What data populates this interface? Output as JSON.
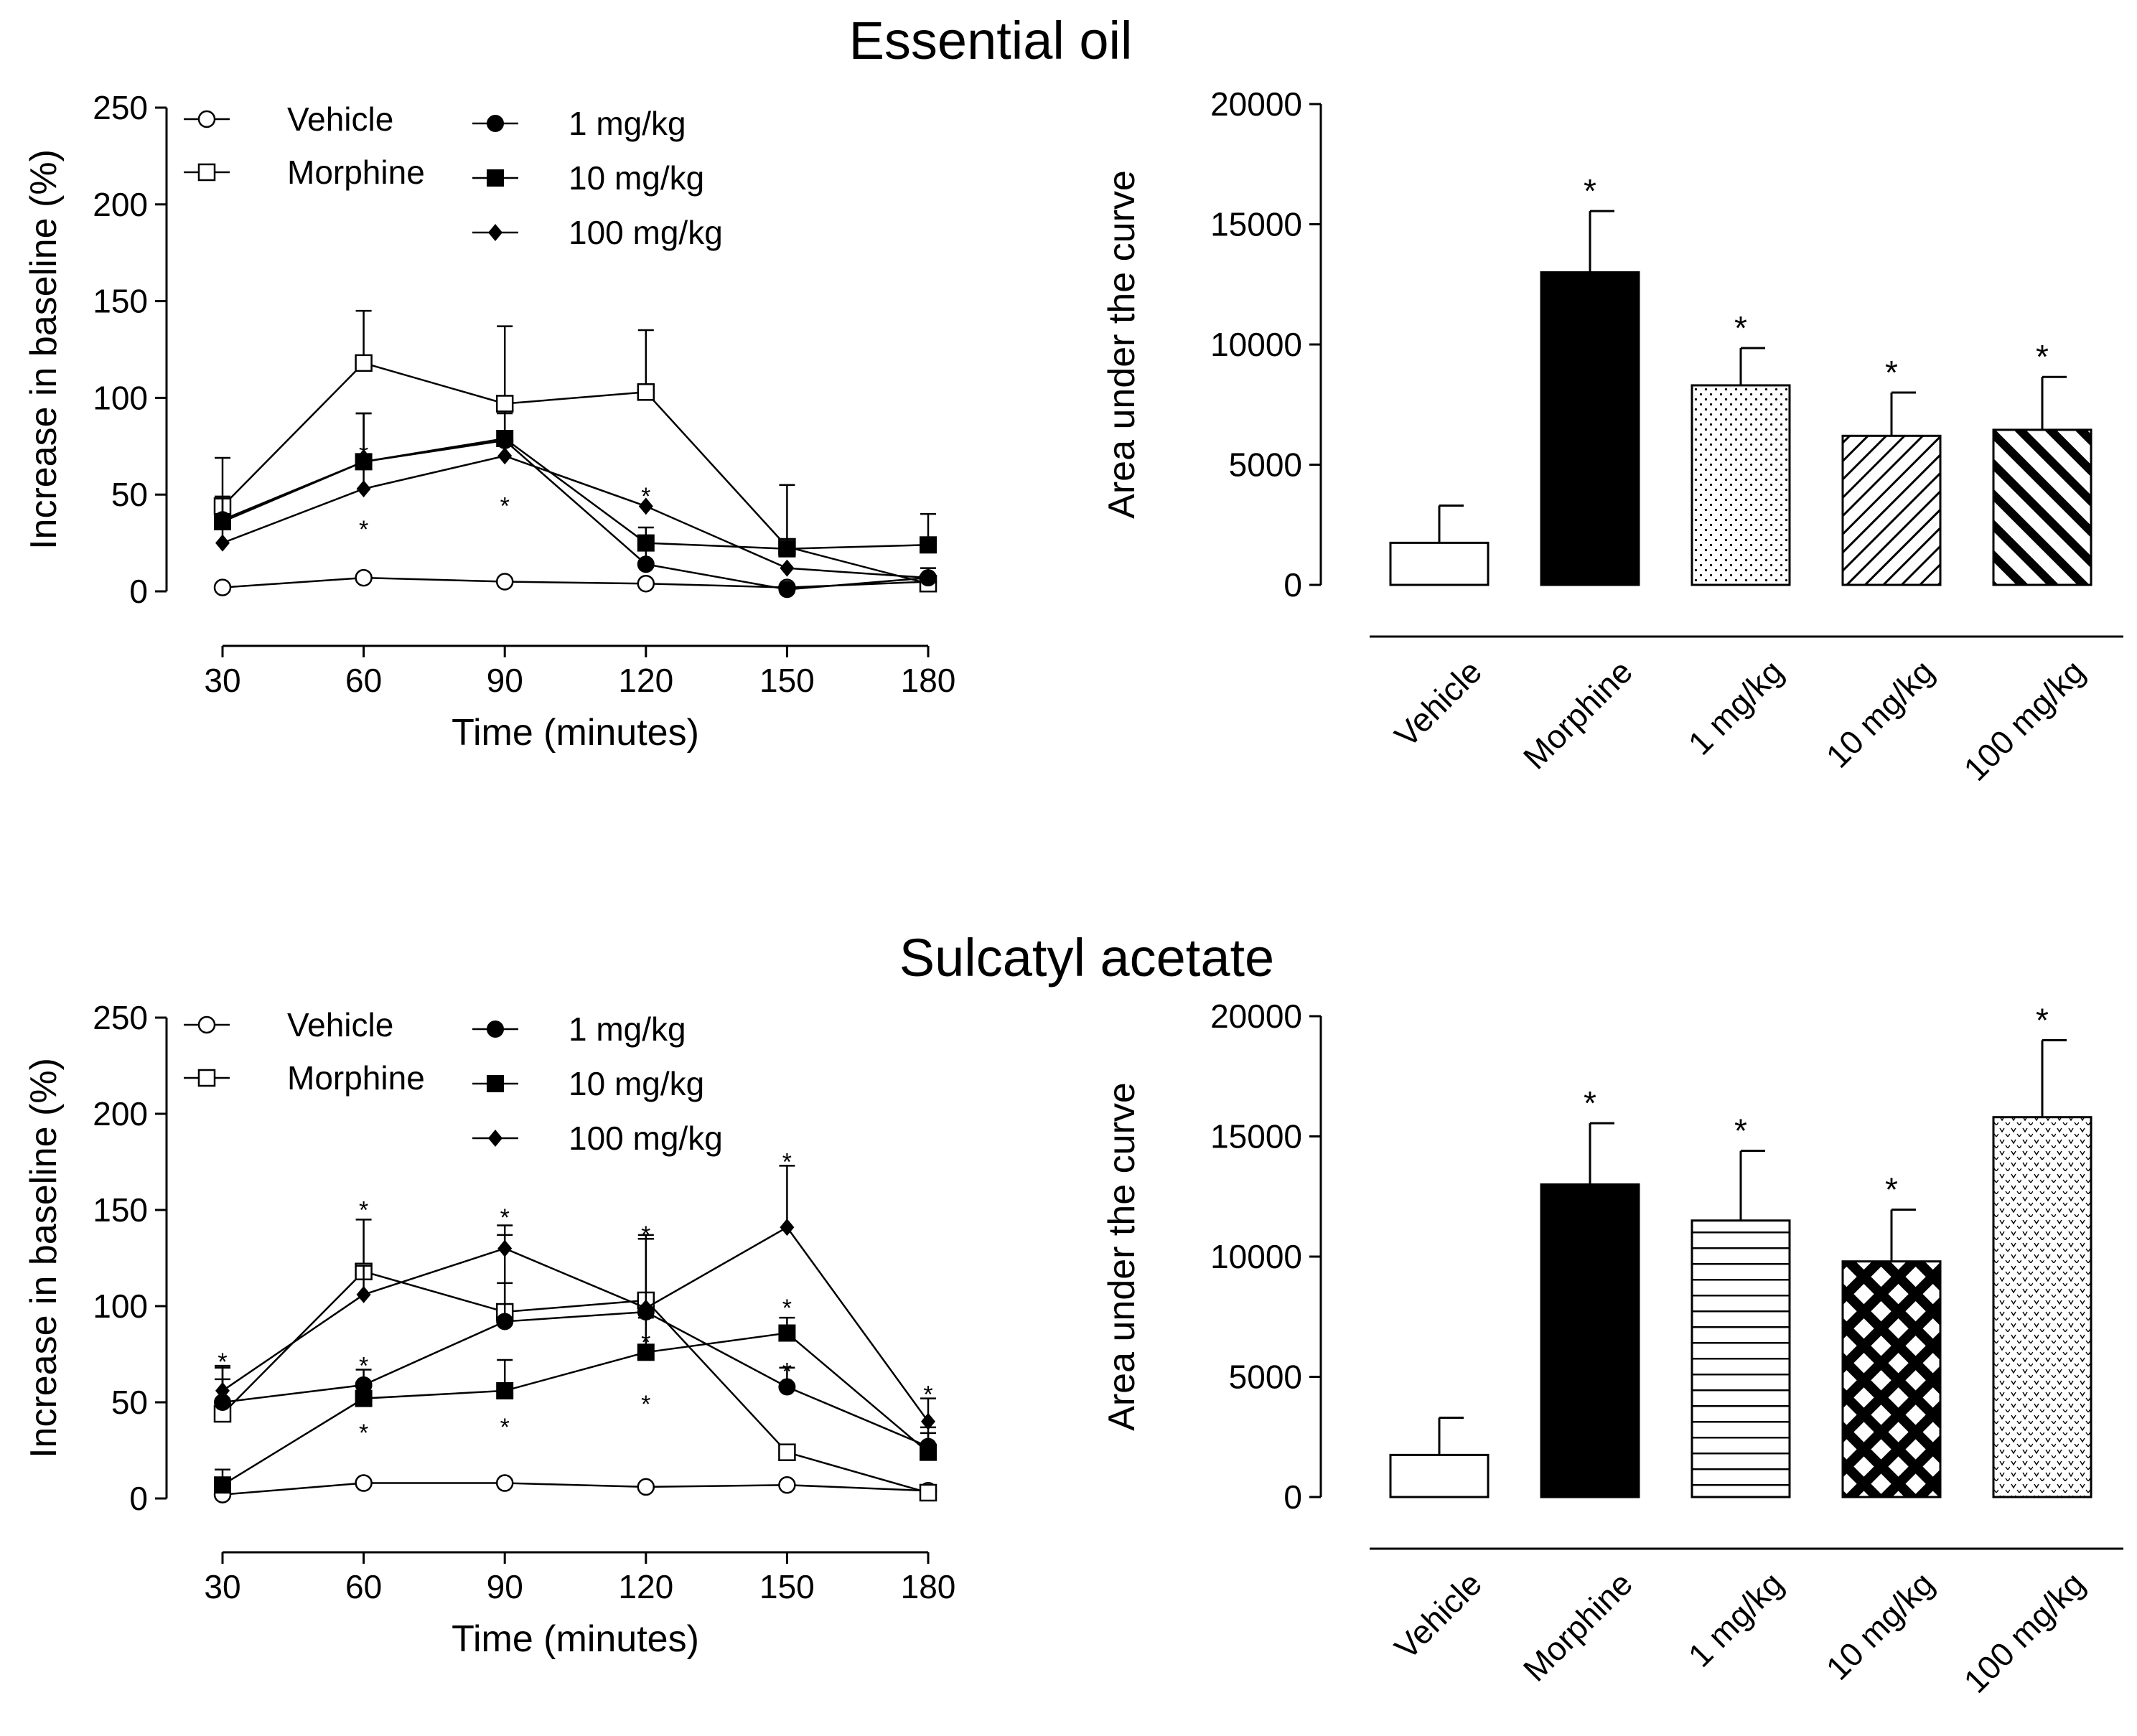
{
  "figure": {
    "panels": [
      "top",
      "bottom"
    ]
  },
  "chart_data": [
    {
      "id": "eo-line",
      "type": "line",
      "panel_title": "Essential oil",
      "xlabel": "Time (minutes)",
      "ylabel": "Increase in baseline (%)",
      "x": [
        30,
        60,
        90,
        120,
        150,
        180
      ],
      "xlim": [
        30,
        180
      ],
      "ylim": [
        0,
        250
      ],
      "yticks": [
        0,
        50,
        100,
        150,
        200,
        250
      ],
      "legend": [
        "Vehicle",
        "Morphine",
        "1 mg/kg",
        "10 mg/kg",
        "100 mg/kg"
      ],
      "series": [
        {
          "name": "Vehicle",
          "marker": "circle-open",
          "values": [
            2,
            7,
            5,
            4,
            2,
            5
          ],
          "err": [
            0,
            0,
            0,
            0,
            0,
            0
          ]
        },
        {
          "name": "Morphine",
          "marker": "square-open",
          "values": [
            44,
            118,
            97,
            103,
            23,
            4
          ],
          "err": [
            25,
            27,
            40,
            32,
            32,
            0
          ]
        },
        {
          "name": "1 mg/kg",
          "marker": "circle-filled",
          "values": [
            37,
            67,
            78,
            14,
            1,
            7
          ],
          "err": [
            12,
            25,
            14,
            8,
            0,
            0
          ]
        },
        {
          "name": "10 mg/kg",
          "marker": "square-filled",
          "values": [
            36,
            67,
            79,
            25,
            22,
            24
          ],
          "err": [
            12,
            25,
            14,
            8,
            5,
            16
          ]
        },
        {
          "name": "100 mg/kg",
          "marker": "diamond-filled",
          "values": [
            25,
            53,
            70,
            44,
            12,
            7
          ],
          "err": [
            8,
            12,
            12,
            0,
            0,
            5
          ]
        }
      ],
      "annotations": [
        {
          "text": "*",
          "x": 60,
          "y": 72
        },
        {
          "text": "*",
          "x": 60,
          "y": 33
        },
        {
          "text": "*",
          "x": 90,
          "y": 77
        },
        {
          "text": "*",
          "x": 90,
          "y": 45
        },
        {
          "text": "*",
          "x": 120,
          "y": 50
        }
      ]
    },
    {
      "id": "eo-bar",
      "type": "bar",
      "ylabel": "Area under the curve",
      "categories": [
        "Vehicle",
        "Morphine",
        "1 mg/kg",
        "10 mg/kg",
        "100 mg/kg"
      ],
      "values": [
        1750,
        13000,
        8300,
        6200,
        6450
      ],
      "err": [
        1550,
        2550,
        1550,
        1800,
        2200
      ],
      "sig": [
        "",
        "*",
        "*",
        "*",
        "*"
      ],
      "patterns": [
        "none",
        "solid",
        "dots",
        "diag-thin",
        "diag-thick"
      ],
      "ylim": [
        0,
        20000
      ],
      "yticks": [
        0,
        5000,
        10000,
        15000,
        20000
      ]
    },
    {
      "id": "sa-line",
      "type": "line",
      "panel_title": "Sulcatyl acetate",
      "xlabel": "Time (minutes)",
      "ylabel": "Increase in baseline (%)",
      "x": [
        30,
        60,
        90,
        120,
        150,
        180
      ],
      "xlim": [
        30,
        180
      ],
      "ylim": [
        0,
        250
      ],
      "yticks": [
        0,
        50,
        100,
        150,
        200,
        250
      ],
      "legend": [
        "Vehicle",
        "Morphine",
        "1 mg/kg",
        "10 mg/kg",
        "100 mg/kg"
      ],
      "series": [
        {
          "name": "Vehicle",
          "marker": "circle-open",
          "values": [
            2,
            8,
            8,
            6,
            7,
            4
          ],
          "err": [
            0,
            0,
            0,
            0,
            0,
            0
          ]
        },
        {
          "name": "Morphine",
          "marker": "square-open",
          "values": [
            44,
            118,
            97,
            103,
            24,
            3
          ],
          "err": [
            25,
            27,
            40,
            32,
            0,
            0
          ]
        },
        {
          "name": "1 mg/kg",
          "marker": "circle-filled",
          "values": [
            50,
            59,
            92,
            97,
            58,
            27
          ],
          "err": [
            12,
            8,
            20,
            38,
            10,
            10
          ]
        },
        {
          "name": "10 mg/kg",
          "marker": "square-filled",
          "values": [
            7,
            52,
            56,
            76,
            86,
            24
          ],
          "err": [
            8,
            6,
            16,
            18,
            8,
            10
          ]
        },
        {
          "name": "100 mg/kg",
          "marker": "diamond-filled",
          "values": [
            56,
            106,
            130,
            99,
            141,
            40
          ],
          "err": [
            12,
            15,
            12,
            38,
            32,
            12
          ]
        }
      ],
      "annotations": [
        {
          "text": "*",
          "x": 30,
          "y": 72
        },
        {
          "text": "*",
          "x": 60,
          "y": 151
        },
        {
          "text": "*",
          "x": 60,
          "y": 70
        },
        {
          "text": "*",
          "x": 60,
          "y": 35
        },
        {
          "text": "*",
          "x": 90,
          "y": 147
        },
        {
          "text": "*",
          "x": 90,
          "y": 38
        },
        {
          "text": "*",
          "x": 120,
          "y": 138
        },
        {
          "text": "*",
          "x": 120,
          "y": 82
        },
        {
          "text": "*",
          "x": 120,
          "y": 50
        },
        {
          "text": "*",
          "x": 150,
          "y": 176
        },
        {
          "text": "*",
          "x": 150,
          "y": 100
        },
        {
          "text": "*",
          "x": 150,
          "y": 67
        },
        {
          "text": "*",
          "x": 180,
          "y": 55
        }
      ]
    },
    {
      "id": "sa-bar",
      "type": "bar",
      "ylabel": "Area under the curve",
      "categories": [
        "Vehicle",
        "Morphine",
        "1 mg/kg",
        "10 mg/kg",
        "100 mg/kg"
      ],
      "values": [
        1750,
        13000,
        11500,
        9800,
        15800
      ],
      "err": [
        1550,
        2550,
        2900,
        2150,
        3200
      ],
      "sig": [
        "",
        "*",
        "*",
        "*",
        "*"
      ],
      "patterns": [
        "none",
        "solid",
        "hlines",
        "crosshatch",
        "vchecks"
      ],
      "ylim": [
        0,
        20000
      ],
      "yticks": [
        0,
        5000,
        10000,
        15000,
        20000
      ]
    }
  ]
}
